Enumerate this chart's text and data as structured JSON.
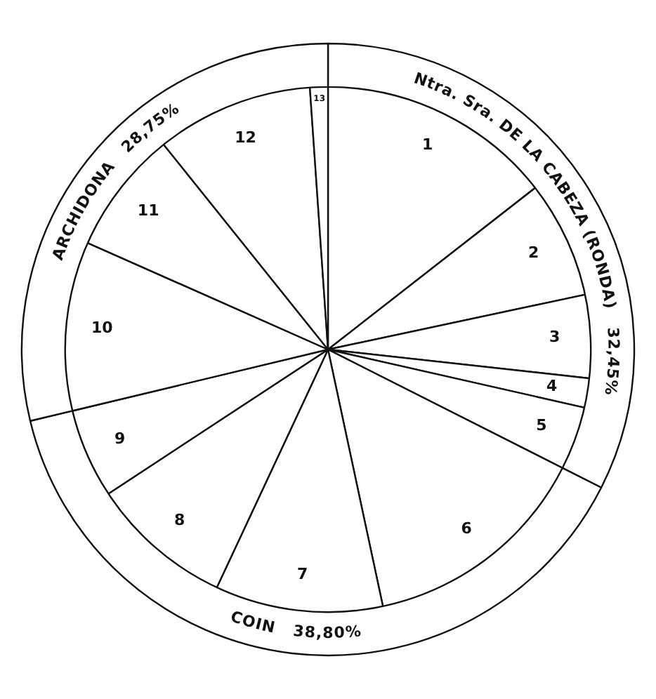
{
  "chart_data": [
    {
      "type": "pie",
      "categories": [
        "1",
        "2",
        "3",
        "4",
        "5",
        "6",
        "7",
        "8",
        "9",
        "10",
        "11",
        "12",
        "13"
      ],
      "values": [
        14.45,
        7.2,
        5.1,
        1.8,
        3.9,
        14.2,
        10.3,
        8.8,
        5.5,
        10.4,
        7.6,
        9.65,
        1.1
      ],
      "colors": [
        "#ffffff",
        "#ffffff",
        "#ffffff",
        "#ffffff",
        "#ffffff",
        "#ffffff",
        "#ffffff",
        "#ffffff",
        "#ffffff",
        "#ffffff",
        "#ffffff",
        "#ffffff",
        "#ffffff"
      ]
    },
    {
      "type": "donut",
      "categories": [
        "Ntra. Sra. DE LA CABEZA (RONDA)",
        "COIN",
        "ARCHIDONA"
      ],
      "values": [
        32.45,
        38.8,
        28.75
      ],
      "value_labels": [
        "32,45%",
        "38,80%",
        "28,75%"
      ],
      "colors": [
        "#ffffff",
        "#ffffff",
        "#ffffff"
      ]
    }
  ]
}
